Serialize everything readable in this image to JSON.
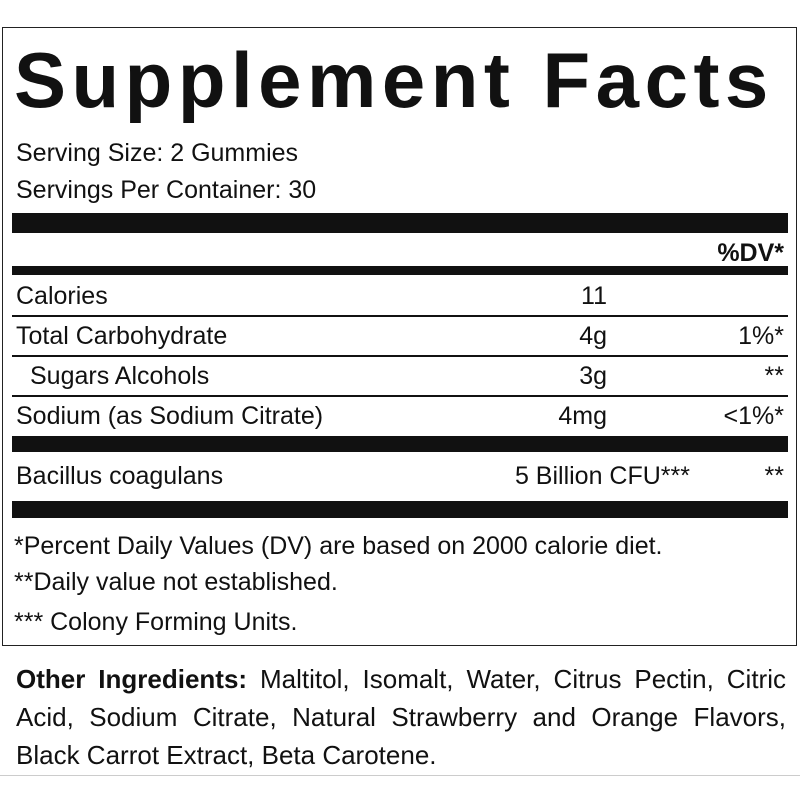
{
  "header": {
    "title": "Supplement Facts",
    "serving_size": "Serving Size: 2 Gummies",
    "servings_per_container": "Servings Per Container: 30"
  },
  "table": {
    "dv_header": "%DV*",
    "rows": [
      {
        "name": "Calories",
        "amount": "11"
      },
      {
        "name": "Total Carbohydrate",
        "amount": "4g",
        "dv": "1%*"
      },
      {
        "name": "Sugars Alcohols",
        "amount": "3g",
        "dv": "**"
      },
      {
        "name": "Sodium (as Sodium Citrate)",
        "amount": "4mg",
        "dv": "<1%*"
      }
    ],
    "ingredient": {
      "name": "Bacillus coagulans",
      "amount": "5 Billion CFU***",
      "dv": "**"
    }
  },
  "footnotes": [
    "*Percent Daily Values (DV) are based on 2000 calorie diet.",
    "**Daily value not established.",
    "*** Colony Forming Units."
  ],
  "other_ingredients": {
    "label": "Other Ingredients:",
    "text": "Maltitol, Isomalt, Water, Citrus Pectin, Citric Acid, Sodium Citrate, Natural Strawberry and Orange Flavors, Black Carrot Extract, Beta Carotene."
  }
}
